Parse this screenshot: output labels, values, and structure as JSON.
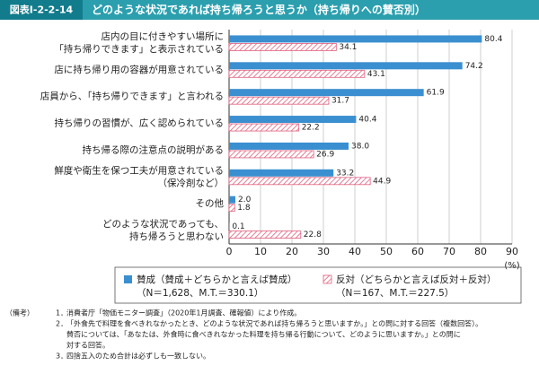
{
  "header": {
    "label": "図表Ⅰ-2-2-14",
    "title": "どのような状況であれば持ち帰ろうと思うか（持ち帰りへの賛否別）"
  },
  "chart_data": {
    "type": "hbar",
    "categories": [
      [
        "店内の目に付きやすい場所に",
        "「持ち帰りできます」と表示されている"
      ],
      [
        "店に持ち帰り用の容器が用意されている"
      ],
      [
        "店員から、「持ち帰りできます」と言われる"
      ],
      [
        "持ち帰りの習慣が、広く認められている"
      ],
      [
        "持ち帰る際の注意点の説明がある"
      ],
      [
        "鮮度や衛生を保つ工夫が用意されている",
        "（保冷剤など）"
      ],
      [
        "その他"
      ],
      [
        "どのような状況であっても、",
        "持ち帰ろうと思わない"
      ]
    ],
    "series": [
      {
        "name": "賛成（賛成＋どちらかと言えば賛成）",
        "sample": "（N＝1,628、M.T.＝330.1）",
        "color": "#3a8fd0",
        "hatch": false,
        "values": [
          80.4,
          74.2,
          61.9,
          40.4,
          38.0,
          33.2,
          2.0,
          0.1
        ],
        "value_labels": [
          "80.4",
          "74.2",
          "61.9",
          "40.4",
          "38.0",
          "33.2",
          "2.0",
          "0.1"
        ]
      },
      {
        "name": "反対（どちらかと言えば反対＋反対）",
        "sample": "（N＝167、M.T.＝227.5）",
        "color": "#e0607e",
        "hatch": true,
        "values": [
          34.1,
          43.1,
          31.7,
          22.2,
          26.9,
          44.9,
          1.8,
          22.8
        ],
        "value_labels": [
          "34.1",
          "43.1",
          "31.7",
          "22.2",
          "26.9",
          "44.9",
          "1.8",
          "22.8"
        ]
      }
    ],
    "xlim": [
      0,
      90
    ],
    "xticks": [
      0,
      10,
      20,
      30,
      40,
      50,
      60,
      70,
      80,
      90
    ],
    "x_unit": "(%)",
    "grid": true
  },
  "notes": {
    "heading": "（備考）",
    "items": [
      {
        "number": "1．",
        "lines": [
          "消費者庁「物価モニター調査」（2020年1月調査、確報値）により作成。"
        ]
      },
      {
        "number": "2．",
        "lines": [
          "「外食先で料理を食べきれなかったとき、どのような状況であれば持ち帰ろうと思いますか。」との問に対する回答（複数回答）。",
          "賛否については、「あなたは、外食時に食べきれなかった料理を持ち帰る行動について、どのように思いますか。」との問に",
          "対する回答。"
        ]
      },
      {
        "number": "3．",
        "lines": [
          "四捨五入のため合計は必ずしも一致しない。"
        ]
      }
    ]
  }
}
